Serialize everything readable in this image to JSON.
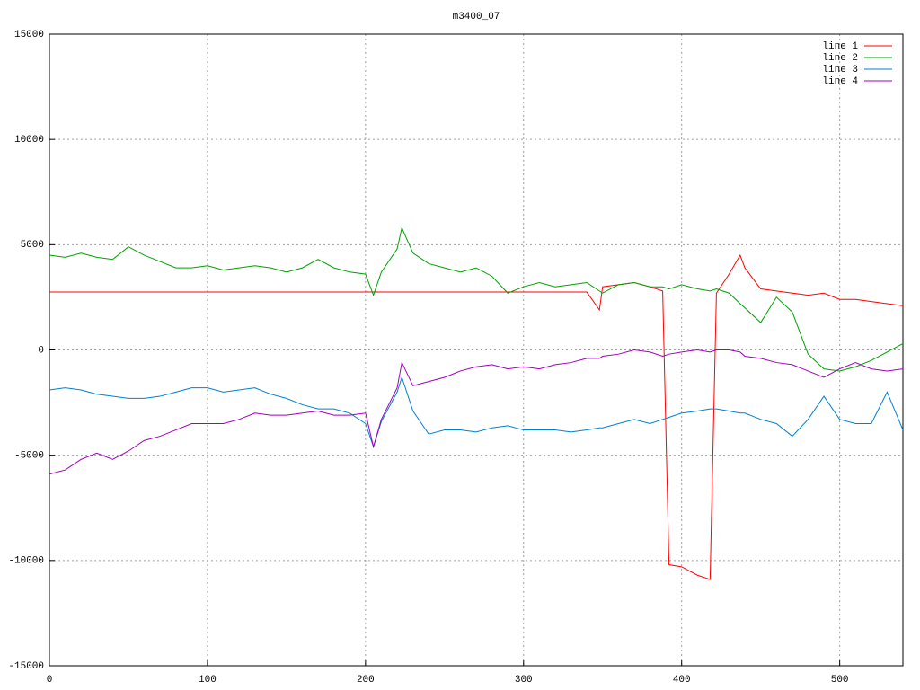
{
  "chart_data": {
    "type": "line",
    "title": "m3400_07",
    "x": [
      0,
      10,
      20,
      30,
      40,
      50,
      60,
      70,
      80,
      90,
      100,
      110,
      120,
      130,
      140,
      150,
      160,
      170,
      180,
      190,
      200,
      205,
      210,
      220,
      223,
      230,
      240,
      250,
      260,
      270,
      280,
      290,
      300,
      310,
      320,
      330,
      340,
      348,
      350,
      360,
      370,
      380,
      388,
      392,
      400,
      410,
      418,
      422,
      430,
      437,
      440,
      450,
      460,
      470,
      480,
      490,
      500,
      510,
      520,
      530,
      540
    ],
    "series": [
      {
        "name": "line 1",
        "color": "#ff0000",
        "values": [
          2750,
          2750,
          2750,
          2750,
          2750,
          2750,
          2750,
          2750,
          2750,
          2750,
          2750,
          2750,
          2750,
          2750,
          2750,
          2750,
          2750,
          2750,
          2750,
          2750,
          2750,
          2750,
          2750,
          2750,
          2750,
          2750,
          2750,
          2750,
          2750,
          2750,
          2750,
          2750,
          2750,
          2750,
          2750,
          2750,
          2750,
          1900,
          3000,
          3100,
          3200,
          3000,
          2800,
          -10200,
          -10300,
          -10700,
          -10900,
          2700,
          3600,
          4500,
          3900,
          2900,
          2800,
          2700,
          2600,
          2700,
          2400,
          2400,
          2300,
          2200,
          2100
        ]
      },
      {
        "name": "line 2",
        "color": "#00a000",
        "values": [
          4500,
          4400,
          4600,
          4400,
          4300,
          4900,
          4500,
          4200,
          3900,
          3900,
          4000,
          3800,
          3900,
          4000,
          3900,
          3700,
          3900,
          4300,
          3900,
          3700,
          3600,
          2600,
          3700,
          4800,
          5800,
          4600,
          4100,
          3900,
          3700,
          3900,
          3500,
          2700,
          3000,
          3200,
          3000,
          3100,
          3200,
          2800,
          2700,
          3100,
          3200,
          3000,
          3000,
          2900,
          3100,
          2900,
          2800,
          2900,
          2700,
          2200,
          2000,
          1300,
          2500,
          1800,
          -200,
          -900,
          -1000,
          -800,
          -500,
          -100,
          300
        ]
      },
      {
        "name": "line 3",
        "color": "#0080d0",
        "values": [
          -1900,
          -1800,
          -1900,
          -2100,
          -2200,
          -2300,
          -2300,
          -2200,
          -2000,
          -1800,
          -1800,
          -2000,
          -1900,
          -1800,
          -2100,
          -2300,
          -2600,
          -2800,
          -2800,
          -3000,
          -3500,
          -4600,
          -3400,
          -2000,
          -1300,
          -2900,
          -4000,
          -3800,
          -3800,
          -3900,
          -3700,
          -3600,
          -3800,
          -3800,
          -3800,
          -3900,
          -3800,
          -3700,
          -3700,
          -3500,
          -3300,
          -3500,
          -3300,
          -3200,
          -3000,
          -2900,
          -2800,
          -2800,
          -2900,
          -3000,
          -3000,
          -3300,
          -3500,
          -4100,
          -3300,
          -2200,
          -3300,
          -3500,
          -3500,
          -2000,
          -3800
        ]
      },
      {
        "name": "line 4",
        "color": "#a000c0",
        "values": [
          -5900,
          -5700,
          -5200,
          -4900,
          -5200,
          -4800,
          -4300,
          -4100,
          -3800,
          -3500,
          -3500,
          -3500,
          -3300,
          -3000,
          -3100,
          -3100,
          -3000,
          -2900,
          -3100,
          -3100,
          -3000,
          -4600,
          -3300,
          -1800,
          -600,
          -1700,
          -1500,
          -1300,
          -1000,
          -800,
          -700,
          -900,
          -800,
          -900,
          -700,
          -600,
          -400,
          -400,
          -300,
          -200,
          0,
          -100,
          -300,
          -200,
          -100,
          0,
          -100,
          0,
          0,
          -100,
          -300,
          -400,
          -600,
          -700,
          -1000,
          -1300,
          -900,
          -600,
          -900,
          -1000,
          -900
        ]
      }
    ],
    "xlim": [
      0,
      540
    ],
    "xticks": [
      0,
      100,
      200,
      300,
      400,
      500
    ],
    "ylim": [
      -15000,
      15000
    ],
    "yticks": [
      -15000,
      -10000,
      -5000,
      0,
      5000,
      10000,
      15000
    ],
    "grid": true,
    "legend": "top-right"
  }
}
